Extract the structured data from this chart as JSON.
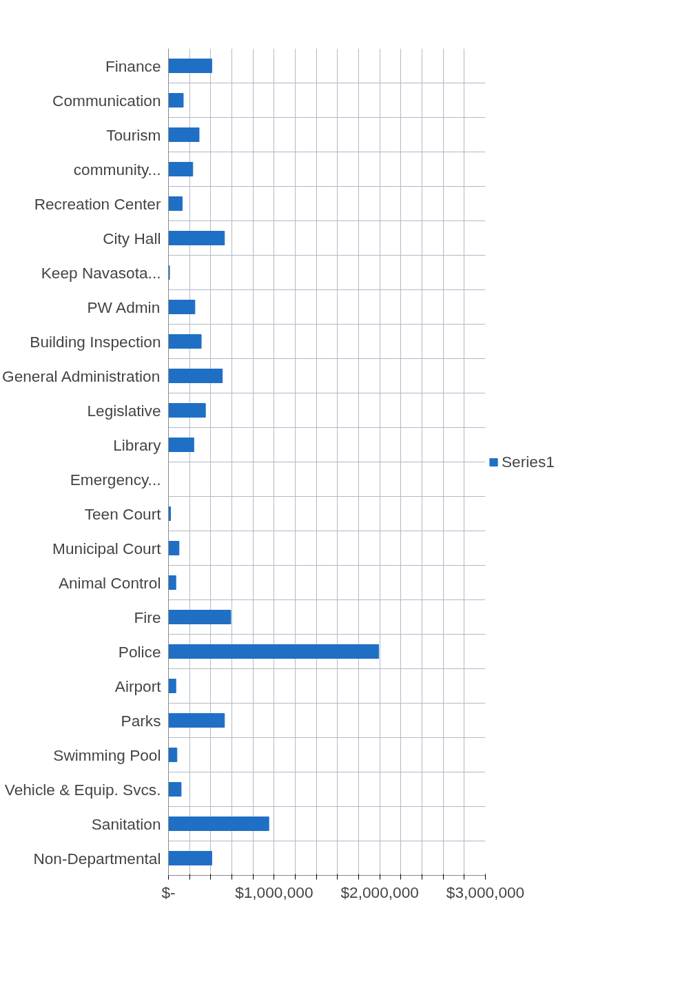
{
  "chart_data": {
    "type": "bar",
    "orientation": "horizontal",
    "categories": [
      "Finance",
      "Communication",
      "Tourism",
      "community...",
      "Recreation Center",
      "City Hall",
      "Keep Navasota...",
      "PW Admin",
      "Building Inspection",
      "General Administration",
      "Legislative",
      "Library",
      "Emergency...",
      "Teen Court",
      "Municipal Court",
      "Animal Control",
      "Fire",
      "Police",
      "Airport",
      "Parks",
      "Swimming Pool",
      "Vehicle & Equip. Svcs.",
      "Sanitation",
      "Non-Departmental"
    ],
    "series": [
      {
        "name": "Series1",
        "color": "#1f6fc5",
        "values": [
          410000,
          140000,
          290000,
          230000,
          130000,
          530000,
          10000,
          250000,
          310000,
          510000,
          350000,
          240000,
          0,
          20000,
          100000,
          70000,
          590000,
          1990000,
          70000,
          530000,
          80000,
          120000,
          950000,
          410000
        ]
      }
    ],
    "xlim": [
      0,
      3000000
    ],
    "xticks": [
      {
        "value": 0,
        "label": "$-"
      },
      {
        "value": 200000,
        "label": null
      },
      {
        "value": 400000,
        "label": null
      },
      {
        "value": 600000,
        "label": null
      },
      {
        "value": 800000,
        "label": null
      },
      {
        "value": 1000000,
        "label": "$1,000,000"
      },
      {
        "value": 1200000,
        "label": null
      },
      {
        "value": 1400000,
        "label": null
      },
      {
        "value": 1600000,
        "label": null
      },
      {
        "value": 1800000,
        "label": null
      },
      {
        "value": 2000000,
        "label": "$2,000,000"
      },
      {
        "value": 2200000,
        "label": null
      },
      {
        "value": 2400000,
        "label": null
      },
      {
        "value": 2600000,
        "label": null
      },
      {
        "value": 2800000,
        "label": null
      },
      {
        "value": 3000000,
        "label": "$3,000,000"
      }
    ],
    "grid": true,
    "legend": "right"
  }
}
